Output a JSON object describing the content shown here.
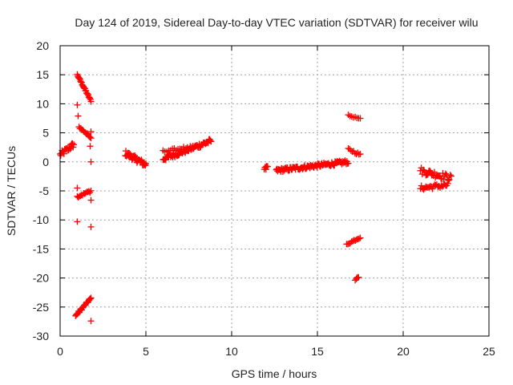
{
  "chart_data": {
    "type": "scatter",
    "title": "Day 124 of 2019, Sidereal Day-to-day VTEC variation (SDTVAR) for receiver wilu",
    "xlabel": "GPS time / hours",
    "ylabel": "SDTVAR / TECUs",
    "xlim": [
      0,
      25
    ],
    "ylim": [
      -30,
      20
    ],
    "x_ticks": [
      0,
      5,
      10,
      15,
      20,
      25
    ],
    "y_ticks": [
      20,
      15,
      10,
      5,
      0,
      -5,
      -10,
      -15,
      -20,
      -25,
      -30
    ],
    "x_tick_labels": [
      "0",
      "5",
      "10",
      "15",
      "20",
      "25"
    ],
    "y_tick_labels": [
      "20",
      "15",
      "10",
      "5",
      "0",
      "-5",
      "-10",
      "-15",
      "-20",
      "-25",
      "-30"
    ],
    "grid": true,
    "marker": "plus",
    "marker_color": "#ff0000",
    "series": [
      {
        "name": "SDTVAR",
        "segments": [
          {
            "x0": 0.0,
            "x1": 0.8,
            "y0": 1.2,
            "y1": 3.0,
            "n": 22,
            "jitter": 1.0
          },
          {
            "x0": 1.0,
            "x1": 1.8,
            "y0": 15.0,
            "y1": 10.5,
            "n": 26,
            "jitter": 0.3
          },
          {
            "x0": 1.1,
            "x1": 1.8,
            "y0": 6.0,
            "y1": 4.2,
            "n": 14,
            "jitter": 0.3
          },
          {
            "x0": 1.0,
            "x1": 1.8,
            "y0": -6.0,
            "y1": -5.0,
            "n": 14,
            "jitter": 0.4
          },
          {
            "x0": 0.9,
            "x1": 1.8,
            "y0": -26.5,
            "y1": -23.5,
            "n": 26,
            "jitter": 0.4
          },
          {
            "x0": 3.8,
            "x1": 5.0,
            "y0": 1.5,
            "y1": -0.5,
            "n": 38,
            "jitter": 1.0
          },
          {
            "x0": 6.0,
            "x1": 8.8,
            "y0": 0.5,
            "y1": 3.6,
            "n": 70,
            "jitter": 0.9
          },
          {
            "x0": 6.0,
            "x1": 7.2,
            "y0": 1.8,
            "y1": 2.4,
            "n": 12,
            "jitter": 0.4
          },
          {
            "x0": 11.9,
            "x1": 12.1,
            "y0": -1.2,
            "y1": -0.8,
            "n": 6,
            "jitter": 0.4
          },
          {
            "x0": 12.6,
            "x1": 16.8,
            "y0": -1.5,
            "y1": 0.0,
            "n": 110,
            "jitter": 0.7
          },
          {
            "x0": 16.8,
            "x1": 17.5,
            "y0": 8.0,
            "y1": 7.4,
            "n": 8,
            "jitter": 0.2
          },
          {
            "x0": 16.8,
            "x1": 17.5,
            "y0": 2.2,
            "y1": 1.2,
            "n": 10,
            "jitter": 0.4
          },
          {
            "x0": 16.7,
            "x1": 17.5,
            "y0": -14.2,
            "y1": -13.0,
            "n": 12,
            "jitter": 0.3
          },
          {
            "x0": 17.2,
            "x1": 17.4,
            "y0": -20.3,
            "y1": -19.8,
            "n": 4,
            "jitter": 0.2
          },
          {
            "x0": 21.0,
            "x1": 22.8,
            "y0": -1.5,
            "y1": -2.8,
            "n": 34,
            "jitter": 1.2
          },
          {
            "x0": 21.0,
            "x1": 22.6,
            "y0": -4.5,
            "y1": -4.0,
            "n": 26,
            "jitter": 0.8
          }
        ],
        "points": [
          {
            "x": 1.0,
            "y": 9.8
          },
          {
            "x": 1.05,
            "y": 7.9
          },
          {
            "x": 1.8,
            "y": 5.2
          },
          {
            "x": 1.75,
            "y": 2.7
          },
          {
            "x": 1.8,
            "y": 0.0
          },
          {
            "x": 1.0,
            "y": -4.5
          },
          {
            "x": 1.8,
            "y": -6.6
          },
          {
            "x": 1.0,
            "y": -10.3
          },
          {
            "x": 1.8,
            "y": -11.2
          },
          {
            "x": 1.8,
            "y": -27.4
          },
          {
            "x": 12.0,
            "y": -1.3
          },
          {
            "x": 17.3,
            "y": -20.0
          }
        ]
      }
    ]
  }
}
